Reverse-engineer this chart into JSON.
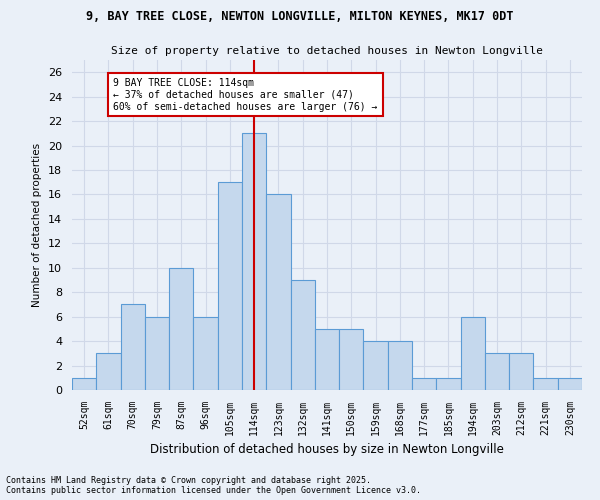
{
  "title1": "9, BAY TREE CLOSE, NEWTON LONGVILLE, MILTON KEYNES, MK17 0DT",
  "title2": "Size of property relative to detached houses in Newton Longville",
  "xlabel": "Distribution of detached houses by size in Newton Longville",
  "ylabel": "Number of detached properties",
  "categories": [
    "52sqm",
    "61sqm",
    "70sqm",
    "79sqm",
    "87sqm",
    "96sqm",
    "105sqm",
    "114sqm",
    "123sqm",
    "132sqm",
    "141sqm",
    "150sqm",
    "159sqm",
    "168sqm",
    "177sqm",
    "185sqm",
    "194sqm",
    "203sqm",
    "212sqm",
    "221sqm",
    "230sqm"
  ],
  "values": [
    1,
    3,
    7,
    6,
    10,
    6,
    17,
    21,
    16,
    9,
    5,
    5,
    4,
    4,
    1,
    1,
    6,
    3,
    3,
    1,
    1
  ],
  "bar_color": "#c5d8ed",
  "bar_edge_color": "#5b9bd5",
  "highlight_index": 7,
  "highlight_line_color": "#cc0000",
  "annotation_line1": "9 BAY TREE CLOSE: 114sqm",
  "annotation_line2": "← 37% of detached houses are smaller (47)",
  "annotation_line3": "60% of semi-detached houses are larger (76) →",
  "annotation_box_color": "#ffffff",
  "annotation_box_edge_color": "#cc0000",
  "ylim": [
    0,
    27
  ],
  "yticks": [
    0,
    2,
    4,
    6,
    8,
    10,
    12,
    14,
    16,
    18,
    20,
    22,
    24,
    26
  ],
  "grid_color": "#d0d8e8",
  "bg_color": "#eaf0f8",
  "footer1": "Contains HM Land Registry data © Crown copyright and database right 2025.",
  "footer2": "Contains public sector information licensed under the Open Government Licence v3.0."
}
